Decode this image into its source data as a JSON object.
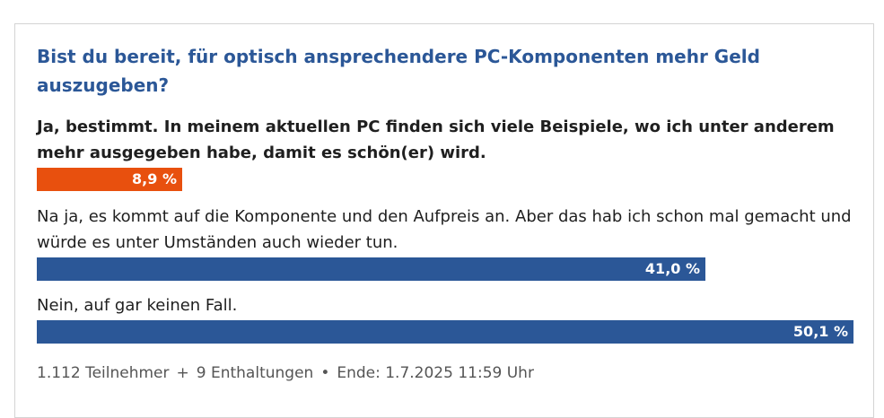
{
  "poll": {
    "question": "Bist du bereit, für optisch ansprechendere PC-Komponenten mehr Geld auszugeben?",
    "options": [
      {
        "label": "Ja, bestimmt. In meinem aktuellen PC finden sich viele Beispiele, wo ich unter anderem mehr ausgegeben habe, damit es schön(er) wird.",
        "percent_text": "8,9 %",
        "percent": 8.9,
        "selected": true,
        "color": "#e8500e"
      },
      {
        "label": "Na ja, es kommt auf die Komponente und den Aufpreis an. Aber das hab ich schon mal gemacht und würde es unter Umständen auch wieder tun.",
        "percent_text": "41,0 %",
        "percent": 41.0,
        "selected": false,
        "color": "#2b5797"
      },
      {
        "label": "Nein, auf gar keinen Fall.",
        "percent_text": "50,1 %",
        "percent": 50.1,
        "selected": false,
        "color": "#2b5797"
      }
    ],
    "footer": {
      "participants": "1.112 Teilnehmer",
      "separator_1": "+",
      "abstentions": "9 Enthaltungen",
      "separator_2": "•",
      "end": "Ende: 1.7.2025 11:59 Uhr"
    }
  }
}
